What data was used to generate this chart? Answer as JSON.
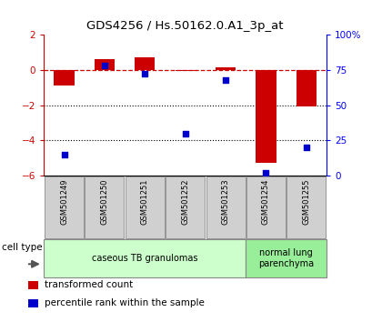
{
  "title": "GDS4256 / Hs.50162.0.A1_3p_at",
  "samples": [
    "GSM501249",
    "GSM501250",
    "GSM501251",
    "GSM501252",
    "GSM501253",
    "GSM501254",
    "GSM501255"
  ],
  "transformed_count": [
    -0.9,
    0.6,
    0.7,
    -0.05,
    0.15,
    -5.3,
    -2.1
  ],
  "percentile_rank": [
    15,
    78,
    72,
    30,
    68,
    2,
    20
  ],
  "red_color": "#cc0000",
  "blue_color": "#0000cc",
  "bar_width": 0.5,
  "ylim_left": [
    -6,
    2
  ],
  "ylim_right": [
    0,
    100
  ],
  "yticks_left": [
    -6,
    -4,
    -2,
    0,
    2
  ],
  "yticks_right": [
    0,
    25,
    50,
    75,
    100
  ],
  "ytick_labels_right": [
    "0",
    "25",
    "50",
    "75",
    "100%"
  ],
  "dotted_line_y": [
    -2,
    -4
  ],
  "cell_type_groups": [
    {
      "label": "caseous TB granulomas",
      "start": 0,
      "end": 4,
      "color": "#ccffcc"
    },
    {
      "label": "normal lung\nparenchyma",
      "start": 5,
      "end": 6,
      "color": "#99ee99"
    }
  ],
  "cell_type_label": "cell type",
  "legend_items": [
    {
      "color": "#cc0000",
      "label": "transformed count"
    },
    {
      "color": "#0000cc",
      "label": "percentile rank within the sample"
    }
  ],
  "bg_color": "#ffffff",
  "box_color": "#d0d0d0",
  "spine_color": "#000000"
}
